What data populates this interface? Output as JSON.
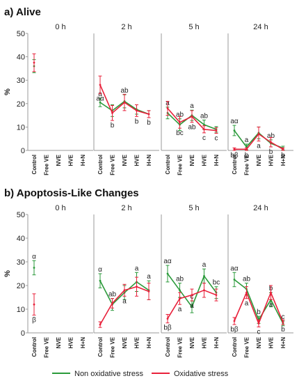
{
  "chart_data": [
    {
      "type": "line",
      "title": "a) Alive",
      "ylabel": "%",
      "ylim": [
        0,
        50
      ],
      "yticks": [
        0,
        10,
        20,
        30,
        40,
        50
      ],
      "categories": [
        "Control",
        "Free VE",
        "NVE",
        "HVE",
        "H+N"
      ],
      "facets": [
        "0 h",
        "2 h",
        "5 h",
        "24 h"
      ],
      "series": [
        {
          "name": "Non oxidative stress",
          "color": "#2a9a3a",
          "values": [
            [
              36,
              null,
              null,
              null,
              null
            ],
            [
              20.5,
              17,
              21,
              17.5,
              15.5
            ],
            [
              16,
              11,
              15,
              11,
              9
            ],
            [
              8.5,
              1.5,
              7.5,
              3,
              1
            ]
          ],
          "err": [
            [
              2.8,
              null,
              null,
              null,
              null
            ],
            [
              1.8,
              2.5,
              2.8,
              2,
              1.5
            ],
            [
              2.5,
              2.5,
              2.2,
              2,
              1.2
            ],
            [
              2.2,
              1.2,
              2.5,
              1.5,
              0.8
            ]
          ],
          "labels": [
            [
              null,
              null,
              null,
              null,
              null
            ],
            [
              "a",
              null,
              "ab",
              null,
              null
            ],
            [
              "a",
              "ab",
              "a",
              "ab",
              null
            ],
            [
              "aα",
              "a",
              null,
              "ab",
              null
            ]
          ]
        },
        {
          "name": "Oxidative stress",
          "color": "#e8203a",
          "values": [
            [
              37.5,
              null,
              null,
              null,
              null
            ],
            [
              28,
              16,
              20.5,
              17,
              15.5
            ],
            [
              18,
              12,
              14.5,
              9,
              8.5
            ],
            [
              0.5,
              0.5,
              7,
              3.5,
              0.5
            ]
          ],
          "err": [
            [
              3.8,
              null,
              null,
              null,
              null
            ],
            [
              3.8,
              3.2,
              3.5,
              2.5,
              1.5
            ],
            [
              3,
              2.5,
              2.5,
              1.5,
              1.2
            ],
            [
              0.6,
              0.6,
              3,
              2,
              0.6
            ]
          ],
          "labels": [
            [
              null,
              null,
              null,
              null,
              null
            ],
            [
              "aα",
              "b",
              null,
              "b",
              "b"
            ],
            [
              null,
              "bc",
              "ab",
              "c",
              "c"
            ],
            [
              "bβ",
              "b",
              "a",
              "b",
              "b"
            ]
          ]
        }
      ]
    },
    {
      "type": "line",
      "title": "b) Apoptosis-Like Changes",
      "ylabel": "%",
      "ylim": [
        0,
        50
      ],
      "yticks": [
        0,
        10,
        20,
        30,
        40,
        50
      ],
      "categories": [
        "Control",
        "Free VE",
        "NVE",
        "HVE",
        "H+N"
      ],
      "facets": [
        "0 h",
        "2 h",
        "5 h",
        "24 h"
      ],
      "series": [
        {
          "name": "Non oxidative stress",
          "color": "#2a9a3a",
          "values": [
            [
              27.5,
              null,
              null,
              null,
              null
            ],
            [
              22,
              12,
              17,
              21.5,
              18
            ],
            [
              25,
              18,
              11,
              24,
              17
            ],
            [
              22.5,
              18.5,
              5.5,
              14,
              4
            ]
          ],
          "err": [
            [
              3,
              null,
              null,
              null,
              null
            ],
            [
              3,
              2.5,
              3,
              4,
              4
            ],
            [
              3.5,
              3,
              2.5,
              3,
              2.5
            ],
            [
              3,
              2.5,
              1.5,
              3,
              1
            ]
          ],
          "labels": [
            [
              "α",
              null,
              null,
              null,
              null
            ],
            [
              "α",
              "ab",
              null,
              "a",
              "a"
            ],
            [
              "aα",
              "ab",
              "c",
              "a",
              "bc"
            ],
            [
              "aα",
              "ab",
              "b",
              "b",
              "c"
            ]
          ]
        },
        {
          "name": "Oxidative stress",
          "color": "#e8203a",
          "values": [
            [
              12,
              null,
              null,
              null,
              null
            ],
            [
              3.5,
              12.5,
              18,
              19.5,
              17.5
            ],
            [
              6,
              14.5,
              16,
              18,
              16
            ],
            [
              5,
              17,
              4,
              17,
              4.5
            ]
          ],
          "err": [
            [
              4.5,
              null,
              null,
              null,
              null
            ],
            [
              1.2,
              2,
              2.5,
              4,
              3.5
            ],
            [
              1.8,
              2.5,
              2.5,
              3,
              2.5
            ],
            [
              1.5,
              2.5,
              1.5,
              3,
              1
            ]
          ],
          "labels": [
            [
              "β",
              null,
              null,
              null,
              null
            ],
            [
              null,
              null,
              "a",
              null,
              null
            ],
            [
              "bβ",
              "a",
              "a",
              null,
              null
            ],
            [
              "bβ",
              "a",
              "c",
              "a",
              "b"
            ]
          ]
        }
      ]
    }
  ],
  "legend": {
    "position": "bottom",
    "items": [
      {
        "label": "Non oxidative stress",
        "color": "#2a9a3a"
      },
      {
        "label": "Oxidative stress",
        "color": "#e8203a"
      }
    ]
  }
}
